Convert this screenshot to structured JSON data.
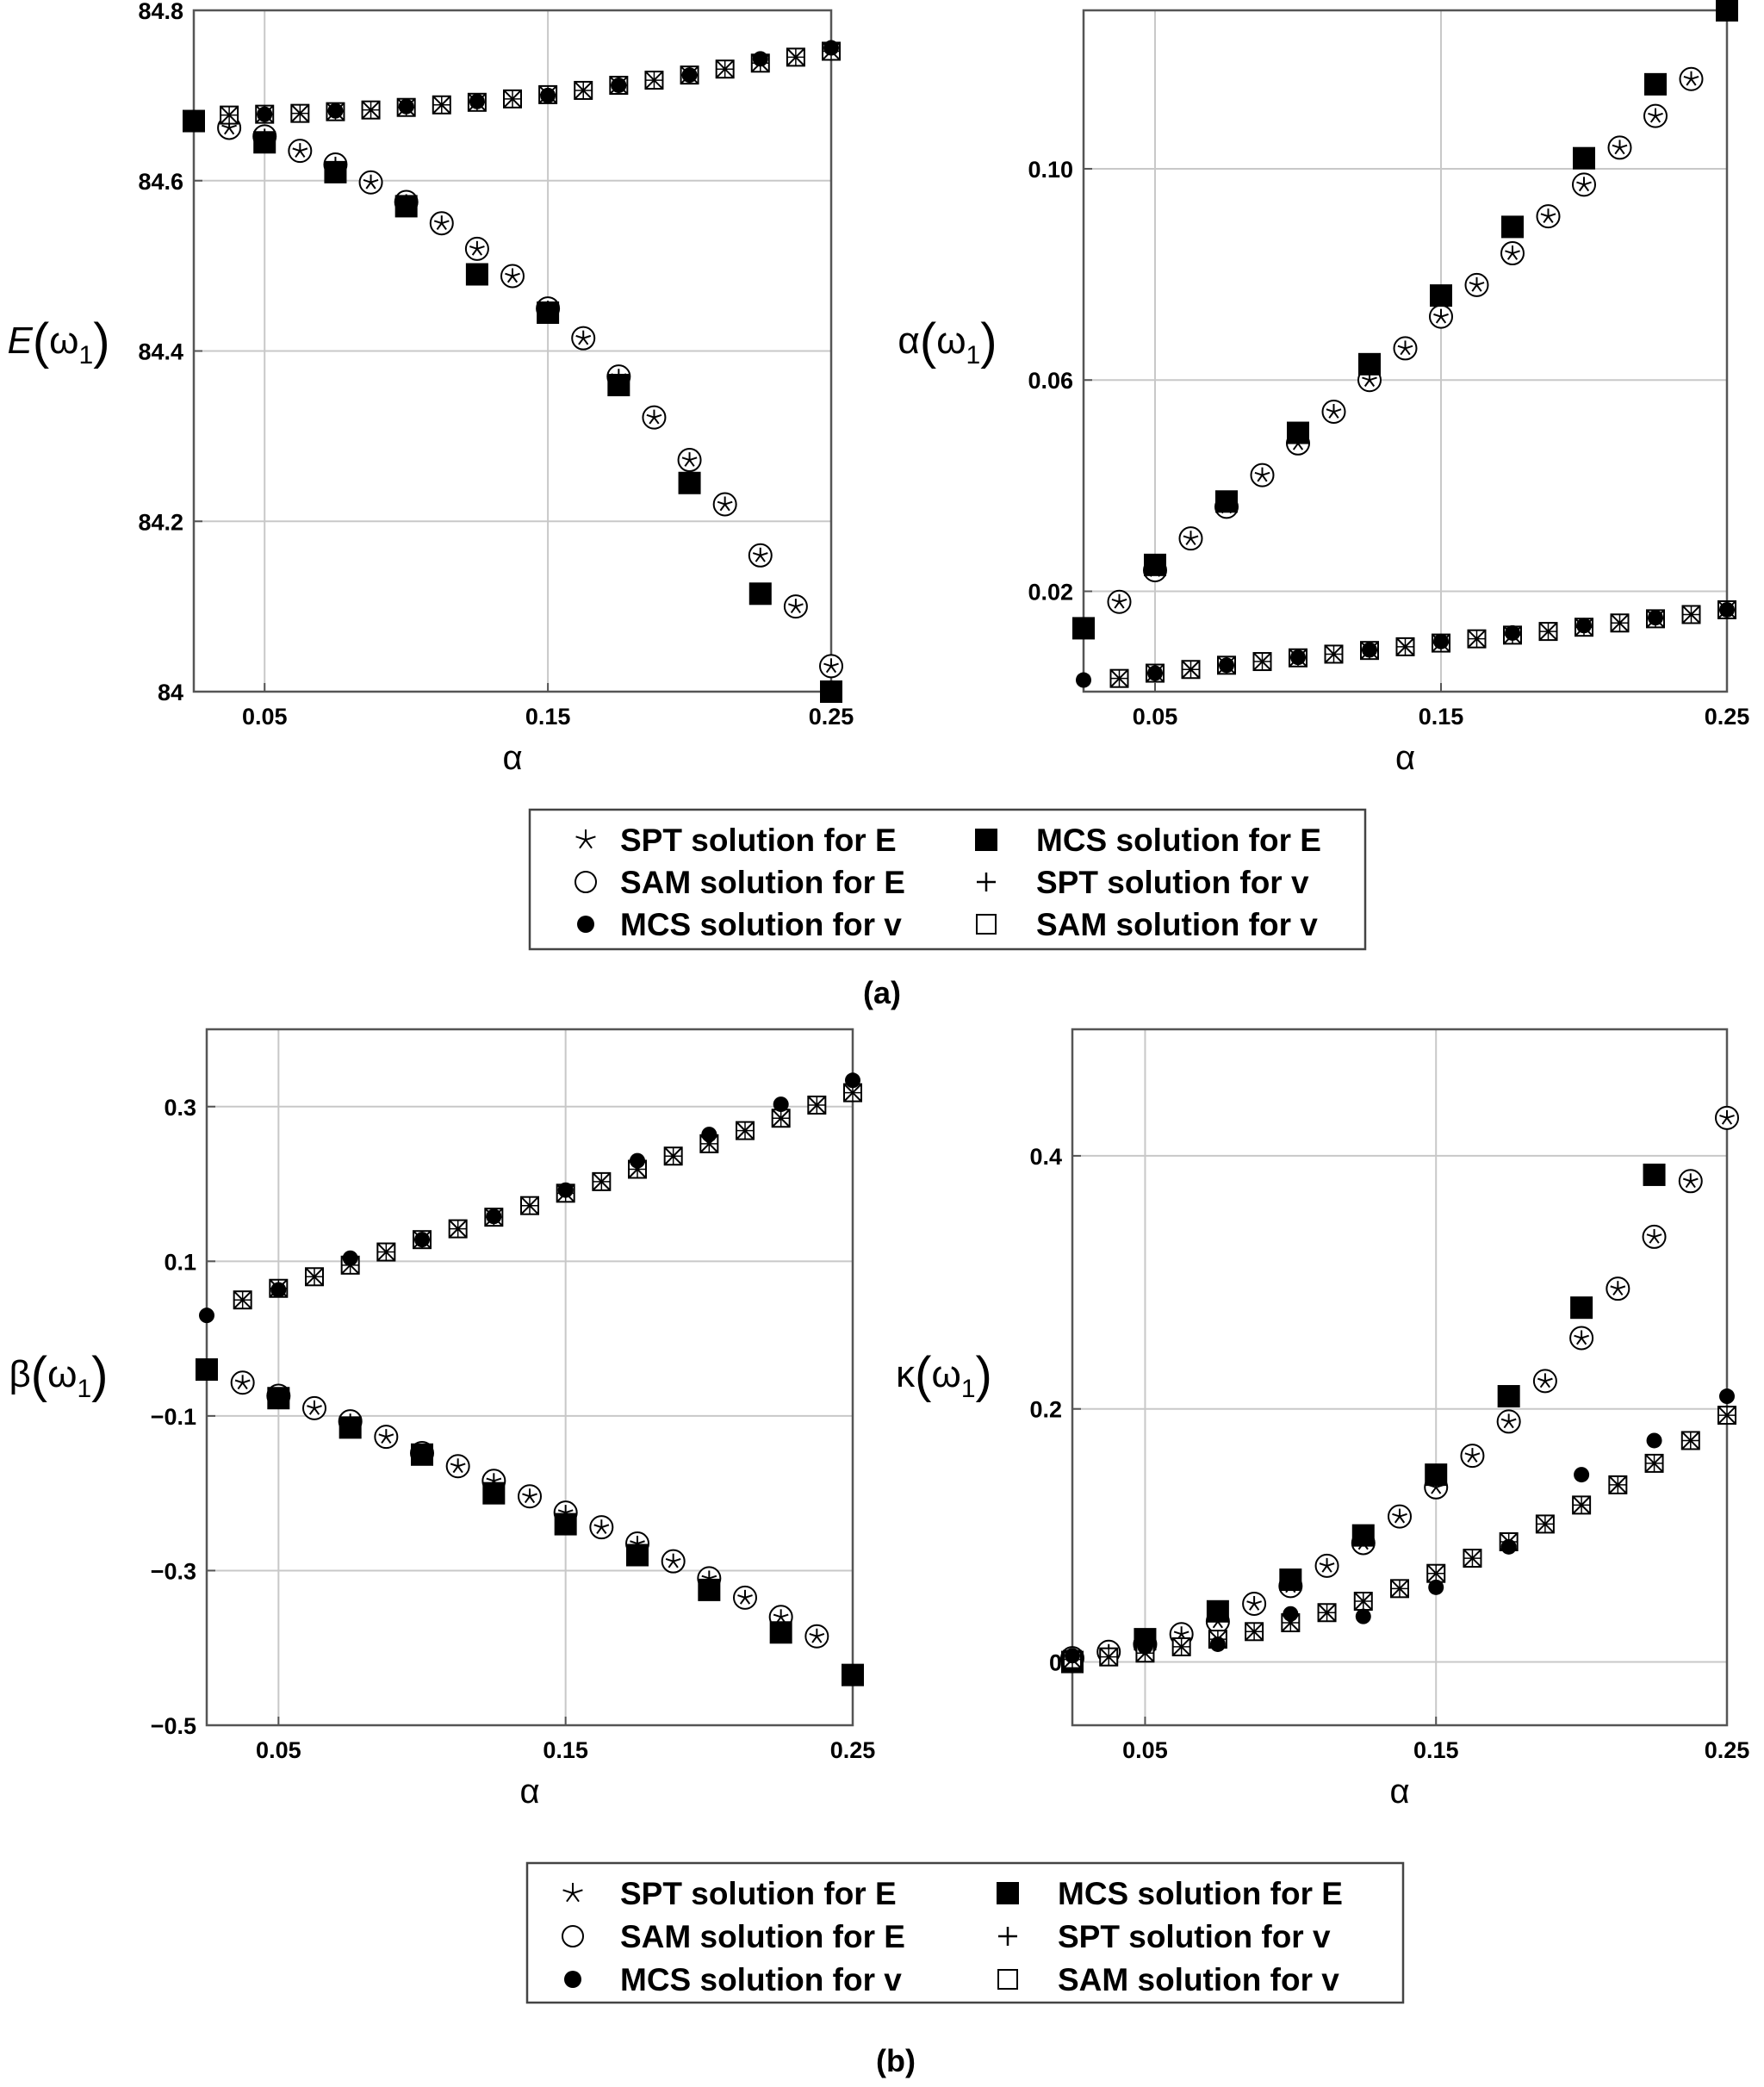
{
  "figure": {
    "panels": [
      {
        "label": "(a)"
      },
      {
        "label": "(b)"
      }
    ],
    "legend_entries": [
      {
        "marker": "star",
        "text": "SPT solution for E"
      },
      {
        "marker": "filled-square",
        "text": "MCS solution for E"
      },
      {
        "marker": "open-circle",
        "text": "SAM solution for E"
      },
      {
        "marker": "plus",
        "text": "SPT solution for v"
      },
      {
        "marker": "filled-circle",
        "text": "MCS solution for v"
      },
      {
        "marker": "open-square",
        "text": "SAM solution for v"
      }
    ],
    "colors": {
      "markers": "#000000",
      "grid": "#c8c8c8",
      "axes": "#555555"
    }
  },
  "chart_data": [
    {
      "type": "scatter",
      "panel": "(a)",
      "ylabel": "E",
      "ylabel_arg": "ω",
      "ylabel_sub": "1",
      "xlabel": "α",
      "xlim": [
        0.025,
        0.25
      ],
      "ylim": [
        84.0,
        84.8
      ],
      "xticks": [
        {
          "v": 0.05,
          "t": "0.05"
        },
        {
          "v": 0.15,
          "t": "0.15"
        },
        {
          "v": 0.25,
          "t": "0.25"
        }
      ],
      "yticks": [
        {
          "v": 84.0,
          "t": "84"
        },
        {
          "v": 84.2,
          "t": "84.2"
        },
        {
          "v": 84.4,
          "t": "84.4"
        },
        {
          "v": 84.6,
          "t": "84.6"
        },
        {
          "v": 84.8,
          "t": "84.8"
        }
      ],
      "grid": true,
      "series": [
        {
          "marker": "star-circle",
          "x": [
            0.0375,
            0.05,
            0.0625,
            0.075,
            0.0875,
            0.1,
            0.1125,
            0.125,
            0.1375,
            0.15,
            0.1625,
            0.175,
            0.1875,
            0.2,
            0.2125,
            0.225,
            0.2375,
            0.25
          ],
          "y": [
            84.662,
            84.652,
            84.635,
            84.619,
            84.598,
            84.575,
            84.55,
            84.52,
            84.488,
            84.45,
            84.415,
            84.37,
            84.322,
            84.272,
            84.22,
            84.16,
            84.1,
            84.03
          ]
        },
        {
          "marker": "filled-square",
          "x": [
            0.025,
            0.05,
            0.075,
            0.1,
            0.125,
            0.15,
            0.175,
            0.2,
            0.225,
            0.25
          ],
          "y": [
            84.67,
            84.645,
            84.61,
            84.57,
            84.49,
            84.445,
            84.36,
            84.245,
            84.115,
            84.0
          ]
        },
        {
          "marker": "boxed-cross",
          "x": [
            0.0375,
            0.05,
            0.0625,
            0.075,
            0.0875,
            0.1,
            0.1125,
            0.125,
            0.1375,
            0.15,
            0.1625,
            0.175,
            0.1875,
            0.2,
            0.2125,
            0.225,
            0.2375,
            0.25
          ],
          "y": [
            84.677,
            84.678,
            84.679,
            84.681,
            84.683,
            84.686,
            84.689,
            84.692,
            84.696,
            84.701,
            84.706,
            84.712,
            84.718,
            84.724,
            84.731,
            84.738,
            84.745,
            84.752
          ]
        },
        {
          "marker": "filled-circle",
          "x": [
            0.025,
            0.05,
            0.075,
            0.1,
            0.125,
            0.15,
            0.175,
            0.2,
            0.225,
            0.25
          ],
          "y": [
            84.674,
            84.678,
            84.682,
            84.687,
            84.693,
            84.7,
            84.712,
            84.724,
            84.743,
            84.756
          ]
        }
      ]
    },
    {
      "type": "scatter",
      "panel": "(a)",
      "ylabel": "α",
      "ylabel_arg": "ω",
      "ylabel_sub": "1",
      "xlabel": "α",
      "xlim": [
        0.025,
        0.25
      ],
      "ylim": [
        0.001,
        0.13
      ],
      "xticks": [
        {
          "v": 0.05,
          "t": "0.05"
        },
        {
          "v": 0.15,
          "t": "0.15"
        },
        {
          "v": 0.25,
          "t": "0.25"
        }
      ],
      "yticks": [
        {
          "v": 0.02,
          "t": "0.02"
        },
        {
          "v": 0.06,
          "t": "0.06"
        },
        {
          "v": 0.1,
          "t": "0.10"
        }
      ],
      "grid": true,
      "series": [
        {
          "marker": "star-circle",
          "x": [
            0.0375,
            0.05,
            0.0625,
            0.075,
            0.0875,
            0.1,
            0.1125,
            0.125,
            0.1375,
            0.15,
            0.1625,
            0.175,
            0.1875,
            0.2,
            0.2125,
            0.225,
            0.2375
          ],
          "y": [
            0.018,
            0.024,
            0.03,
            0.036,
            0.042,
            0.048,
            0.054,
            0.06,
            0.066,
            0.072,
            0.078,
            0.084,
            0.091,
            0.097,
            0.104,
            0.11,
            0.117
          ]
        },
        {
          "marker": "filled-square",
          "x": [
            0.025,
            0.05,
            0.075,
            0.1,
            0.125,
            0.15,
            0.175,
            0.2,
            0.225,
            0.25
          ],
          "y": [
            0.013,
            0.025,
            0.037,
            0.05,
            0.063,
            0.076,
            0.089,
            0.102,
            0.116,
            0.13
          ]
        },
        {
          "marker": "boxed-cross",
          "x": [
            0.0375,
            0.05,
            0.0625,
            0.075,
            0.0875,
            0.1,
            0.1125,
            0.125,
            0.1375,
            0.15,
            0.1625,
            0.175,
            0.1875,
            0.2,
            0.2125,
            0.225,
            0.2375,
            0.25
          ],
          "y": [
            0.0035,
            0.0045,
            0.0052,
            0.006,
            0.0067,
            0.0074,
            0.0081,
            0.0088,
            0.0095,
            0.0102,
            0.011,
            0.0117,
            0.0124,
            0.0132,
            0.014,
            0.0148,
            0.0156,
            0.0165
          ]
        },
        {
          "marker": "filled-circle",
          "x": [
            0.025,
            0.05,
            0.075,
            0.1,
            0.125,
            0.15,
            0.175,
            0.2,
            0.225,
            0.25
          ],
          "y": [
            0.0032,
            0.0045,
            0.006,
            0.0075,
            0.0089,
            0.0105,
            0.0121,
            0.0135,
            0.015,
            0.0165
          ]
        }
      ]
    },
    {
      "type": "scatter",
      "panel": "(b)",
      "ylabel": "β",
      "ylabel_arg": "ω",
      "ylabel_sub": "1",
      "xlabel": "α",
      "xlim": [
        0.025,
        0.25
      ],
      "ylim": [
        -0.5,
        0.4
      ],
      "xticks": [
        {
          "v": 0.05,
          "t": "0.05"
        },
        {
          "v": 0.15,
          "t": "0.15"
        },
        {
          "v": 0.25,
          "t": "0.25"
        }
      ],
      "yticks": [
        {
          "v": -0.5,
          "t": "−0.5"
        },
        {
          "v": -0.3,
          "t": "−0.3"
        },
        {
          "v": -0.1,
          "t": "−0.1"
        },
        {
          "v": 0.1,
          "t": "0.1"
        },
        {
          "v": 0.3,
          "t": "0.3"
        }
      ],
      "grid": true,
      "series": [
        {
          "marker": "star-circle",
          "x": [
            0.0375,
            0.05,
            0.0625,
            0.075,
            0.0875,
            0.1,
            0.1125,
            0.125,
            0.1375,
            0.15,
            0.1625,
            0.175,
            0.1875,
            0.2,
            0.2125,
            0.225,
            0.2375
          ],
          "y": [
            -0.057,
            -0.074,
            -0.09,
            -0.107,
            -0.127,
            -0.148,
            -0.165,
            -0.184,
            -0.204,
            -0.225,
            -0.244,
            -0.265,
            -0.288,
            -0.31,
            -0.335,
            -0.36,
            -0.385
          ]
        },
        {
          "marker": "filled-square",
          "x": [
            0.025,
            0.05,
            0.075,
            0.1,
            0.125,
            0.15,
            0.175,
            0.2,
            0.225,
            0.25
          ],
          "y": [
            -0.04,
            -0.077,
            -0.115,
            -0.15,
            -0.2,
            -0.24,
            -0.28,
            -0.325,
            -0.38,
            -0.435
          ]
        },
        {
          "marker": "boxed-cross",
          "x": [
            0.0375,
            0.05,
            0.0625,
            0.075,
            0.0875,
            0.1,
            0.1125,
            0.125,
            0.1375,
            0.15,
            0.1625,
            0.175,
            0.1875,
            0.2,
            0.2125,
            0.225,
            0.2375,
            0.25
          ],
          "y": [
            0.05,
            0.065,
            0.08,
            0.095,
            0.112,
            0.128,
            0.142,
            0.157,
            0.172,
            0.188,
            0.203,
            0.219,
            0.236,
            0.252,
            0.269,
            0.285,
            0.302,
            0.318
          ]
        },
        {
          "marker": "filled-circle",
          "x": [
            0.025,
            0.05,
            0.075,
            0.1,
            0.125,
            0.15,
            0.175,
            0.2,
            0.225,
            0.25
          ],
          "y": [
            0.03,
            0.063,
            0.104,
            0.128,
            0.158,
            0.192,
            0.23,
            0.264,
            0.303,
            0.334
          ]
        }
      ]
    },
    {
      "type": "scatter",
      "panel": "(b)",
      "ylabel": "κ",
      "ylabel_arg": "ω",
      "ylabel_sub": "1",
      "xlabel": "α",
      "xlim": [
        0.025,
        0.25
      ],
      "ylim": [
        -0.05,
        0.5
      ],
      "xticks": [
        {
          "v": 0.05,
          "t": "0.05"
        },
        {
          "v": 0.15,
          "t": "0.15"
        },
        {
          "v": 0.25,
          "t": "0.25"
        }
      ],
      "yticks": [
        {
          "v": 0.0,
          "t": "0"
        },
        {
          "v": 0.2,
          "t": "0.2"
        },
        {
          "v": 0.4,
          "t": "0.4"
        }
      ],
      "grid": true,
      "series": [
        {
          "marker": "star-circle",
          "x": [
            0.025,
            0.0375,
            0.05,
            0.0625,
            0.075,
            0.0875,
            0.1,
            0.1125,
            0.125,
            0.1375,
            0.15,
            0.1625,
            0.175,
            0.1875,
            0.2,
            0.2125,
            0.225,
            0.2375,
            0.25
          ],
          "y": [
            0.003,
            0.008,
            0.014,
            0.022,
            0.032,
            0.046,
            0.06,
            0.076,
            0.094,
            0.115,
            0.138,
            0.163,
            0.19,
            0.222,
            0.256,
            0.295,
            0.336,
            0.38,
            0.43
          ]
        },
        {
          "marker": "filled-square",
          "x": [
            0.025,
            0.05,
            0.075,
            0.1,
            0.125,
            0.15,
            0.175,
            0.2,
            0.225
          ],
          "y": [
            0.0,
            0.018,
            0.04,
            0.065,
            0.1,
            0.148,
            0.21,
            0.28,
            0.385
          ]
        },
        {
          "marker": "boxed-cross",
          "x": [
            0.025,
            0.0375,
            0.05,
            0.0625,
            0.075,
            0.0875,
            0.1,
            0.1125,
            0.125,
            0.1375,
            0.15,
            0.1625,
            0.175,
            0.1875,
            0.2,
            0.2125,
            0.225,
            0.2375,
            0.25
          ],
          "y": [
            0.002,
            0.004,
            0.007,
            0.012,
            0.018,
            0.024,
            0.031,
            0.039,
            0.048,
            0.058,
            0.07,
            0.082,
            0.095,
            0.109,
            0.124,
            0.14,
            0.157,
            0.175,
            0.195
          ]
        },
        {
          "marker": "filled-circle",
          "x": [
            0.025,
            0.05,
            0.075,
            0.1,
            0.125,
            0.15,
            0.175,
            0.2,
            0.225,
            0.25
          ],
          "y": [
            0.005,
            0.012,
            0.014,
            0.038,
            0.036,
            0.059,
            0.091,
            0.148,
            0.175,
            0.21
          ]
        }
      ]
    }
  ]
}
